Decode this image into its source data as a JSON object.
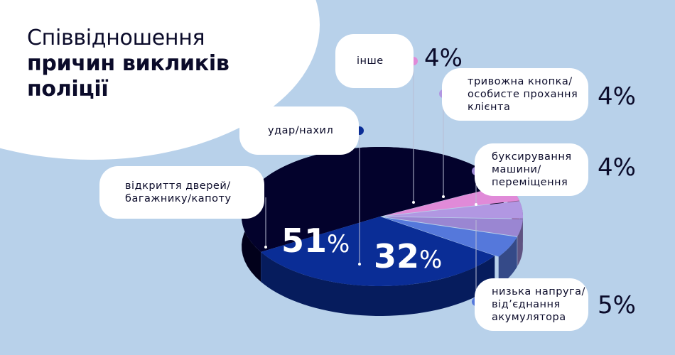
{
  "title": {
    "line1": "Співвідношення",
    "line2": "причин викликів",
    "line3": "поліції"
  },
  "colors": {
    "background": "#b8d1ea",
    "other": "#e08ad8",
    "panic": "#b197e2",
    "tow": "#9a86d2",
    "battery": "#5578db",
    "bump": "#0a2d96",
    "door": "#03022c"
  },
  "chart_data": {
    "type": "pie",
    "style": "3d-exploded",
    "slices": [
      {
        "label_lines": [
          "відкриття дверей/",
          "багажнику/капоту"
        ],
        "value": 51
      },
      {
        "label_lines": [
          "удар/нахил"
        ],
        "value": 32
      },
      {
        "label_lines": [
          "низька напруга/",
          "від’єднання",
          "акумулятора"
        ],
        "value": 5
      },
      {
        "label_lines": [
          "буксирування",
          "машини/",
          "переміщення"
        ],
        "value": 4
      },
      {
        "label_lines": [
          "тривожна кнопка/",
          "особисте прохання",
          "клієнта"
        ],
        "value": 4
      },
      {
        "label_lines": [
          "інше"
        ],
        "value": 4
      }
    ],
    "value_format": "%"
  }
}
